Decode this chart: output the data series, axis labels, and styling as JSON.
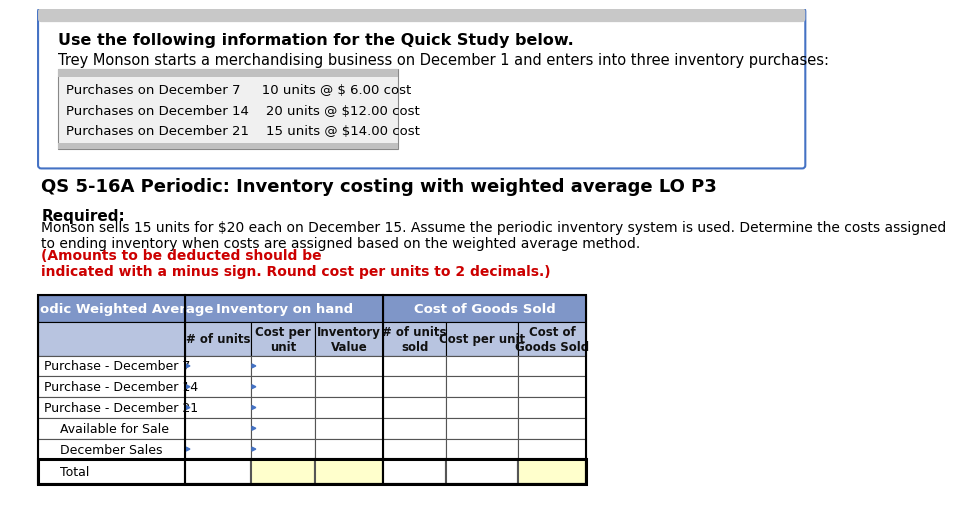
{
  "bg_color": "#ffffff",
  "top_box_border_color": "#4472c4",
  "top_box_bg": "#ffffff",
  "bold_title": "Use the following information for the Quick Study below.",
  "intro_text": "Trey Monson starts a merchandising business on December 1 and enters into three inventory purchases:",
  "purchases": [
    "Purchases on December 7     10 units @ $ 6.00 cost",
    "Purchases on December 14    20 units @ $12.00 cost",
    "Purchases on December 21    15 units @ $14.00 cost"
  ],
  "section_title": "QS 5-16A Periodic: Inventory costing with weighted average LO P3",
  "required_label": "Required:",
  "required_text_black": "Monson sells 15 units for $20 each on December 15. Assume the periodic inventory system is used. Determine the costs assigned\nto ending inventory when costs are assigned based on the weighted average method.",
  "required_text_red": "(Amounts to be deducted should be\nindicated with a minus sign. Round cost per units to 2 decimals.)",
  "table_header_bg": "#7f96c8",
  "table_subheader_bg": "#b8c4e0",
  "table_yellow_bg": "#ffffcc",
  "col0_header": "Periodic Weighted Average",
  "col_group1_header": "Inventory on hand",
  "col_group2_header": "Cost of Goods Sold",
  "col_headers": [
    "# of units",
    "Cost per\nunit",
    "Inventory\nValue",
    "# of units\nsold",
    "Cost per unit",
    "Cost of\nGoods Sold"
  ],
  "row_labels": [
    "Purchase - December 7",
    "Purchase - December 14",
    "Purchase - December 21",
    "Available for Sale",
    "December Sales",
    "Total"
  ],
  "arrow_color": "#4472c4",
  "outer_border_color": "#4472c4"
}
